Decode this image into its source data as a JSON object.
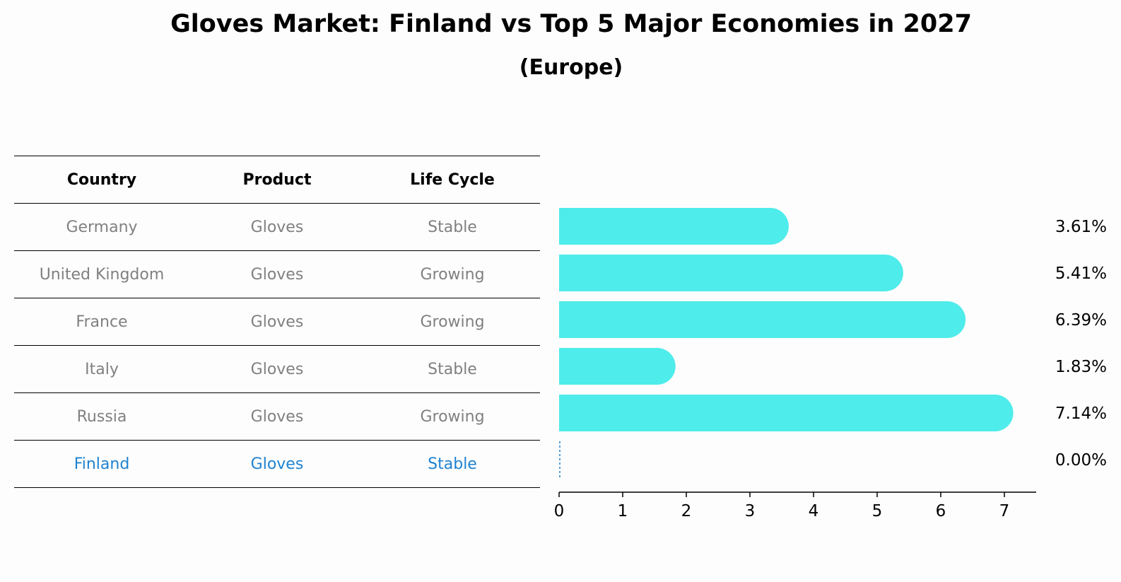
{
  "title": "Gloves Market: Finland vs Top 5 Major Economies in 2027",
  "subtitle": "(Europe)",
  "table": {
    "headers": [
      "Country",
      "Product",
      "Life Cycle"
    ],
    "rows": [
      [
        "Germany",
        "Gloves",
        "Stable"
      ],
      [
        "United Kingdom",
        "Gloves",
        "Growing"
      ],
      [
        "France",
        "Gloves",
        "Growing"
      ],
      [
        "Italy",
        "Gloves",
        "Stable"
      ],
      [
        "Russia",
        "Gloves",
        "Growing"
      ],
      [
        "Finland",
        "Gloves",
        "Stable"
      ]
    ],
    "highlight_row": 5
  },
  "chart_data": {
    "type": "bar",
    "orientation": "horizontal",
    "categories": [
      "Germany",
      "United Kingdom",
      "France",
      "Italy",
      "Russia",
      "Finland"
    ],
    "values": [
      3.61,
      5.41,
      6.39,
      1.83,
      7.14,
      0.0
    ],
    "value_labels": [
      "3.61%",
      "5.41%",
      "6.39%",
      "1.83%",
      "7.14%",
      "0.00%"
    ],
    "xticks": [
      0,
      1,
      2,
      3,
      4,
      5,
      6,
      7
    ],
    "xlim": [
      0,
      7.5
    ],
    "bar_color": "#4eecea",
    "highlight_color": "#1f82d0",
    "grid": false
  }
}
